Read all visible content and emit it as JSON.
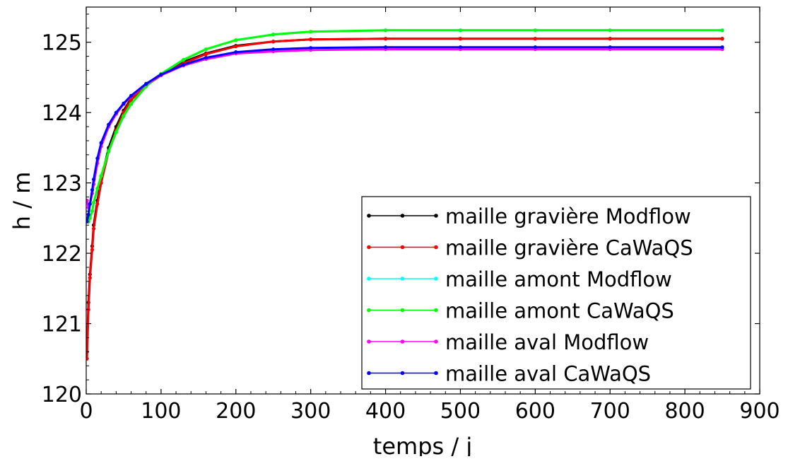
{
  "chart_data": {
    "type": "line",
    "title": "",
    "xlabel": "temps / j",
    "ylabel": "h / m",
    "xlim": [
      0,
      900
    ],
    "ylim": [
      120,
      125.5
    ],
    "xticks": [
      0,
      100,
      200,
      300,
      400,
      500,
      600,
      700,
      800,
      900
    ],
    "yticks": [
      120,
      121,
      122,
      123,
      124,
      125
    ],
    "grid": false,
    "legend": {
      "position": "lower-right"
    },
    "series": [
      {
        "name": "maille gravière Modflow",
        "color": "#000000",
        "marker": "point",
        "x": [
          1,
          3,
          5,
          8,
          10,
          15,
          20,
          30,
          40,
          50,
          60,
          80,
          100,
          130,
          160,
          200,
          250,
          300,
          400,
          500,
          600,
          700,
          850
        ],
        "y": [
          120.6,
          121.3,
          121.7,
          122.1,
          122.4,
          122.75,
          123.05,
          123.5,
          123.8,
          124.03,
          124.2,
          124.4,
          124.55,
          124.72,
          124.84,
          124.95,
          125.01,
          125.04,
          125.05,
          125.05,
          125.05,
          125.05,
          125.05
        ]
      },
      {
        "name": "maille gravière CaWaQS",
        "color": "#ff0000",
        "marker": "point",
        "x": [
          1,
          3,
          5,
          8,
          10,
          15,
          20,
          30,
          40,
          50,
          60,
          80,
          100,
          130,
          160,
          200,
          250,
          300,
          400,
          500,
          600,
          700,
          850
        ],
        "y": [
          120.5,
          121.2,
          121.65,
          122.05,
          122.35,
          122.7,
          123.0,
          123.45,
          123.75,
          124.0,
          124.18,
          124.38,
          124.53,
          124.7,
          124.83,
          124.94,
          125.01,
          125.04,
          125.05,
          125.05,
          125.05,
          125.05,
          125.05
        ]
      },
      {
        "name": "maille amont Modflow",
        "color": "#00ffff",
        "marker": "point",
        "x": [
          1,
          3,
          5,
          8,
          10,
          15,
          20,
          30,
          40,
          50,
          60,
          80,
          100,
          130,
          160,
          200,
          250,
          300,
          400,
          500,
          600,
          700,
          850
        ],
        "y": [
          122.5,
          122.45,
          122.5,
          122.6,
          122.72,
          122.92,
          123.1,
          123.45,
          123.72,
          123.95,
          124.12,
          124.37,
          124.55,
          124.75,
          124.9,
          125.03,
          125.11,
          125.15,
          125.17,
          125.17,
          125.17,
          125.17,
          125.17
        ]
      },
      {
        "name": "maille amont CaWaQS",
        "color": "#00ff00",
        "marker": "point",
        "x": [
          1,
          3,
          5,
          8,
          10,
          15,
          20,
          30,
          40,
          50,
          60,
          80,
          100,
          130,
          160,
          200,
          250,
          300,
          400,
          500,
          600,
          700,
          850
        ],
        "y": [
          122.5,
          122.45,
          122.5,
          122.6,
          122.72,
          122.92,
          123.1,
          123.45,
          123.72,
          123.95,
          124.12,
          124.37,
          124.55,
          124.75,
          124.9,
          125.03,
          125.11,
          125.15,
          125.17,
          125.17,
          125.17,
          125.17,
          125.17
        ]
      },
      {
        "name": "maille aval Modflow",
        "color": "#ff00ff",
        "marker": "point",
        "x": [
          1,
          3,
          5,
          8,
          10,
          15,
          20,
          30,
          40,
          50,
          60,
          80,
          100,
          130,
          160,
          200,
          250,
          300,
          400,
          500,
          600,
          700,
          850
        ],
        "y": [
          122.75,
          122.65,
          122.7,
          122.85,
          122.98,
          123.28,
          123.52,
          123.8,
          123.98,
          124.12,
          124.23,
          124.4,
          124.53,
          124.67,
          124.76,
          124.84,
          124.87,
          124.89,
          124.9,
          124.9,
          124.9,
          124.9,
          124.9
        ]
      },
      {
        "name": "maille aval CaWaQS",
        "color": "#0000ff",
        "marker": "point",
        "x": [
          1,
          3,
          5,
          8,
          10,
          15,
          20,
          30,
          40,
          50,
          60,
          80,
          100,
          130,
          160,
          200,
          250,
          300,
          400,
          500,
          600,
          700,
          850
        ],
        "y": [
          122.45,
          122.55,
          122.7,
          122.9,
          123.05,
          123.35,
          123.57,
          123.83,
          124.0,
          124.13,
          124.24,
          124.41,
          124.54,
          124.68,
          124.78,
          124.86,
          124.9,
          124.92,
          124.93,
          124.93,
          124.93,
          124.93,
          124.93
        ]
      }
    ]
  }
}
